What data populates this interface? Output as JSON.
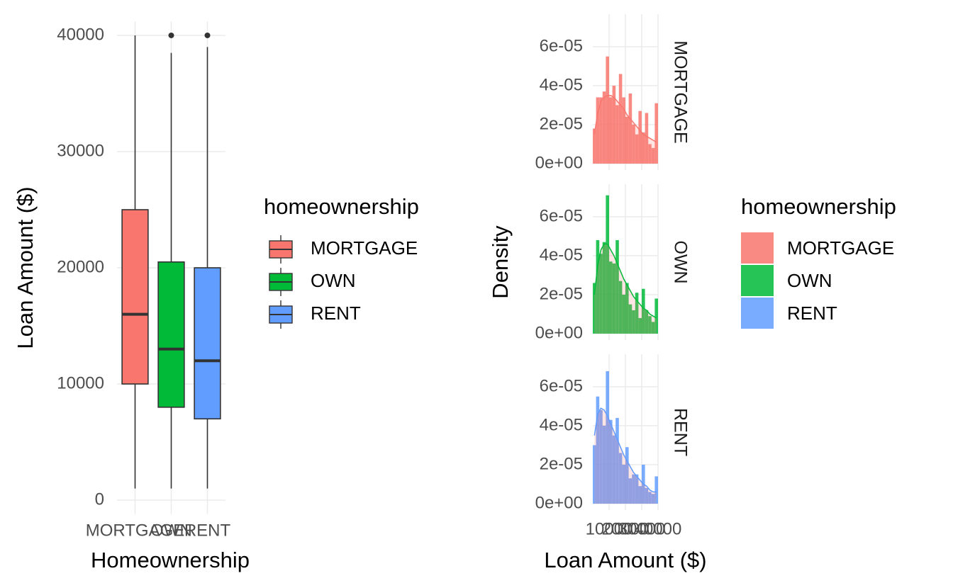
{
  "chart_data": [
    {
      "type": "boxplot",
      "x_label": "Homeownership",
      "y_label": "Loan Amount ($)",
      "legend_title": "homeownership",
      "categories": [
        "MORTGAGE",
        "OWN",
        "RENT"
      ],
      "boxes": [
        {
          "name": "MORTGAGE",
          "color": "#F8766D",
          "whisker_low": 1000,
          "q1": 10000,
          "median": 16000,
          "q3": 25000,
          "whisker_high": 40000,
          "outliers": []
        },
        {
          "name": "OWN",
          "color": "#00BA38",
          "whisker_low": 1000,
          "q1": 8000,
          "median": 13000,
          "q3": 20500,
          "whisker_high": 38500,
          "outliers": [
            40000
          ]
        },
        {
          "name": "RENT",
          "color": "#619CFF",
          "whisker_low": 1000,
          "q1": 7000,
          "median": 12000,
          "q3": 20000,
          "whisker_high": 39000,
          "outliers": [
            40000
          ]
        }
      ],
      "ylim": [
        -1200,
        41200
      ],
      "yticks": [
        0,
        10000,
        20000,
        30000,
        40000
      ],
      "grid": true
    },
    {
      "type": "histogram",
      "x_label": "Loan Amount ($)",
      "y_label": "Density",
      "legend_title": "homeownership",
      "bins": [
        0,
        2000,
        4000,
        6000,
        8000,
        10000,
        12000,
        14000,
        16000,
        18000,
        20000,
        22000,
        24000,
        26000,
        28000,
        30000,
        32000,
        34000,
        36000,
        38000,
        40000
      ],
      "facets": [
        {
          "name": "MORTGAGE",
          "color": "#F8766D",
          "values": [
            1.8e-05,
            3.4e-05,
            3.4e-05,
            3.7e-05,
            5.5e-05,
            3.4e-05,
            4e-05,
            3e-05,
            4.6e-05,
            3.4e-05,
            2.4e-05,
            3.6e-05,
            2e-05,
            1.5e-05,
            2.7e-05,
            1.6e-05,
            2.6e-05,
            1e-05,
            8e-06,
            3.1e-05
          ],
          "density": [
            1.5e-05,
            2.6e-05,
            3.2e-05,
            3.4e-05,
            3.5e-05,
            3.5e-05,
            3.4e-05,
            3.2e-05,
            3e-05,
            2.8e-05,
            2.5e-05,
            2.3e-05,
            2.1e-05,
            1.9e-05,
            1.7e-05,
            1.5e-05,
            1.4e-05,
            1.3e-05,
            1.2e-05,
            1.1e-05
          ]
        },
        {
          "name": "OWN",
          "color": "#00BA38",
          "values": [
            2.6e-05,
            4.8e-05,
            4.1e-05,
            4.7e-05,
            7.1e-05,
            3.7e-05,
            3.6e-05,
            4.8e-05,
            2.7e-05,
            2e-05,
            2.6e-05,
            1.5e-05,
            1.2e-05,
            2.1e-05,
            8e-06,
            2.3e-05,
            1.2e-05,
            9e-06,
            6e-06,
            1.8e-05
          ],
          "density": [
            2e-05,
            3.5e-05,
            4.3e-05,
            4.6e-05,
            4.6e-05,
            4.3e-05,
            4e-05,
            3.6e-05,
            3.2e-05,
            2.8e-05,
            2.5e-05,
            2.2e-05,
            1.9e-05,
            1.7e-05,
            1.5e-05,
            1.3e-05,
            1.2e-05,
            1e-05,
            9e-06,
            8e-06
          ]
        },
        {
          "name": "RENT",
          "color": "#619CFF",
          "values": [
            3e-05,
            5.5e-05,
            4.8e-05,
            4e-05,
            6.8e-05,
            4.3e-05,
            3.5e-05,
            4.4e-05,
            2.6e-05,
            2e-05,
            2.9e-05,
            1.3e-05,
            1.5e-05,
            1.5e-05,
            9e-06,
            2e-05,
            8e-06,
            6e-06,
            5e-06,
            1.4e-05
          ],
          "density": [
            3.5e-05,
            4.6e-05,
            4.9e-05,
            4.8e-05,
            4.5e-05,
            4.1e-05,
            3.7e-05,
            3.3e-05,
            2.9e-05,
            2.5e-05,
            2.2e-05,
            1.9e-05,
            1.6e-05,
            1.4e-05,
            1.2e-05,
            1e-05,
            9e-06,
            7e-06,
            6e-06,
            6e-06
          ]
        }
      ],
      "xlim": [
        0,
        40000
      ],
      "xticks": [
        10000,
        20000,
        30000,
        40000
      ],
      "ylim": [
        -3.3e-06,
        7.67e-05
      ],
      "yticks": [
        {
          "value": 0,
          "label": "0e+00"
        },
        {
          "value": 2e-05,
          "label": "2e-05"
        },
        {
          "value": 4e-05,
          "label": "4e-05"
        },
        {
          "value": 6e-05,
          "label": "6e-05"
        }
      ],
      "grid": true
    }
  ]
}
